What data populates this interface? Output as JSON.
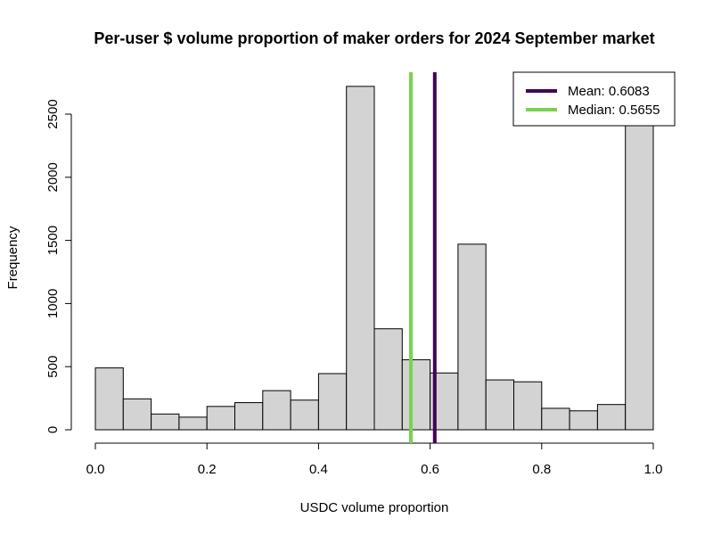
{
  "chart_data": {
    "type": "bar",
    "title": "Per-user $ volume proportion of maker orders for 2024 September market",
    "xlabel": "USDC volume proportion",
    "ylabel": "Frequency",
    "xlim": [
      0,
      1
    ],
    "ylim": [
      0,
      2500
    ],
    "x_ticks": [
      "0.0",
      "0.2",
      "0.4",
      "0.6",
      "0.8",
      "1.0"
    ],
    "y_ticks": [
      "0",
      "500",
      "1000",
      "1500",
      "2000",
      "2500"
    ],
    "bin_width": 0.05,
    "bins": [
      {
        "start": 0.0,
        "end": 0.05,
        "count": 490
      },
      {
        "start": 0.05,
        "end": 0.1,
        "count": 245
      },
      {
        "start": 0.1,
        "end": 0.15,
        "count": 125
      },
      {
        "start": 0.15,
        "end": 0.2,
        "count": 100
      },
      {
        "start": 0.2,
        "end": 0.25,
        "count": 185
      },
      {
        "start": 0.25,
        "end": 0.3,
        "count": 215
      },
      {
        "start": 0.3,
        "end": 0.35,
        "count": 310
      },
      {
        "start": 0.35,
        "end": 0.4,
        "count": 235
      },
      {
        "start": 0.4,
        "end": 0.45,
        "count": 445
      },
      {
        "start": 0.45,
        "end": 0.5,
        "count": 2720
      },
      {
        "start": 0.5,
        "end": 0.55,
        "count": 800
      },
      {
        "start": 0.55,
        "end": 0.6,
        "count": 555
      },
      {
        "start": 0.6,
        "end": 0.65,
        "count": 450
      },
      {
        "start": 0.65,
        "end": 0.7,
        "count": 1470
      },
      {
        "start": 0.7,
        "end": 0.75,
        "count": 395
      },
      {
        "start": 0.75,
        "end": 0.8,
        "count": 380
      },
      {
        "start": 0.8,
        "end": 0.85,
        "count": 170
      },
      {
        "start": 0.85,
        "end": 0.9,
        "count": 150
      },
      {
        "start": 0.9,
        "end": 0.95,
        "count": 200
      },
      {
        "start": 0.95,
        "end": 1.0,
        "count": 2450
      }
    ],
    "bar_color": "#d3d3d3",
    "vlines": [
      {
        "label": "Mean: 0.6083",
        "value": 0.6083,
        "color": "#440154"
      },
      {
        "label": "Median: 0.5655",
        "value": 0.5655,
        "color": "#7ad151"
      }
    ],
    "legend_position": "top-right",
    "grid": false
  }
}
